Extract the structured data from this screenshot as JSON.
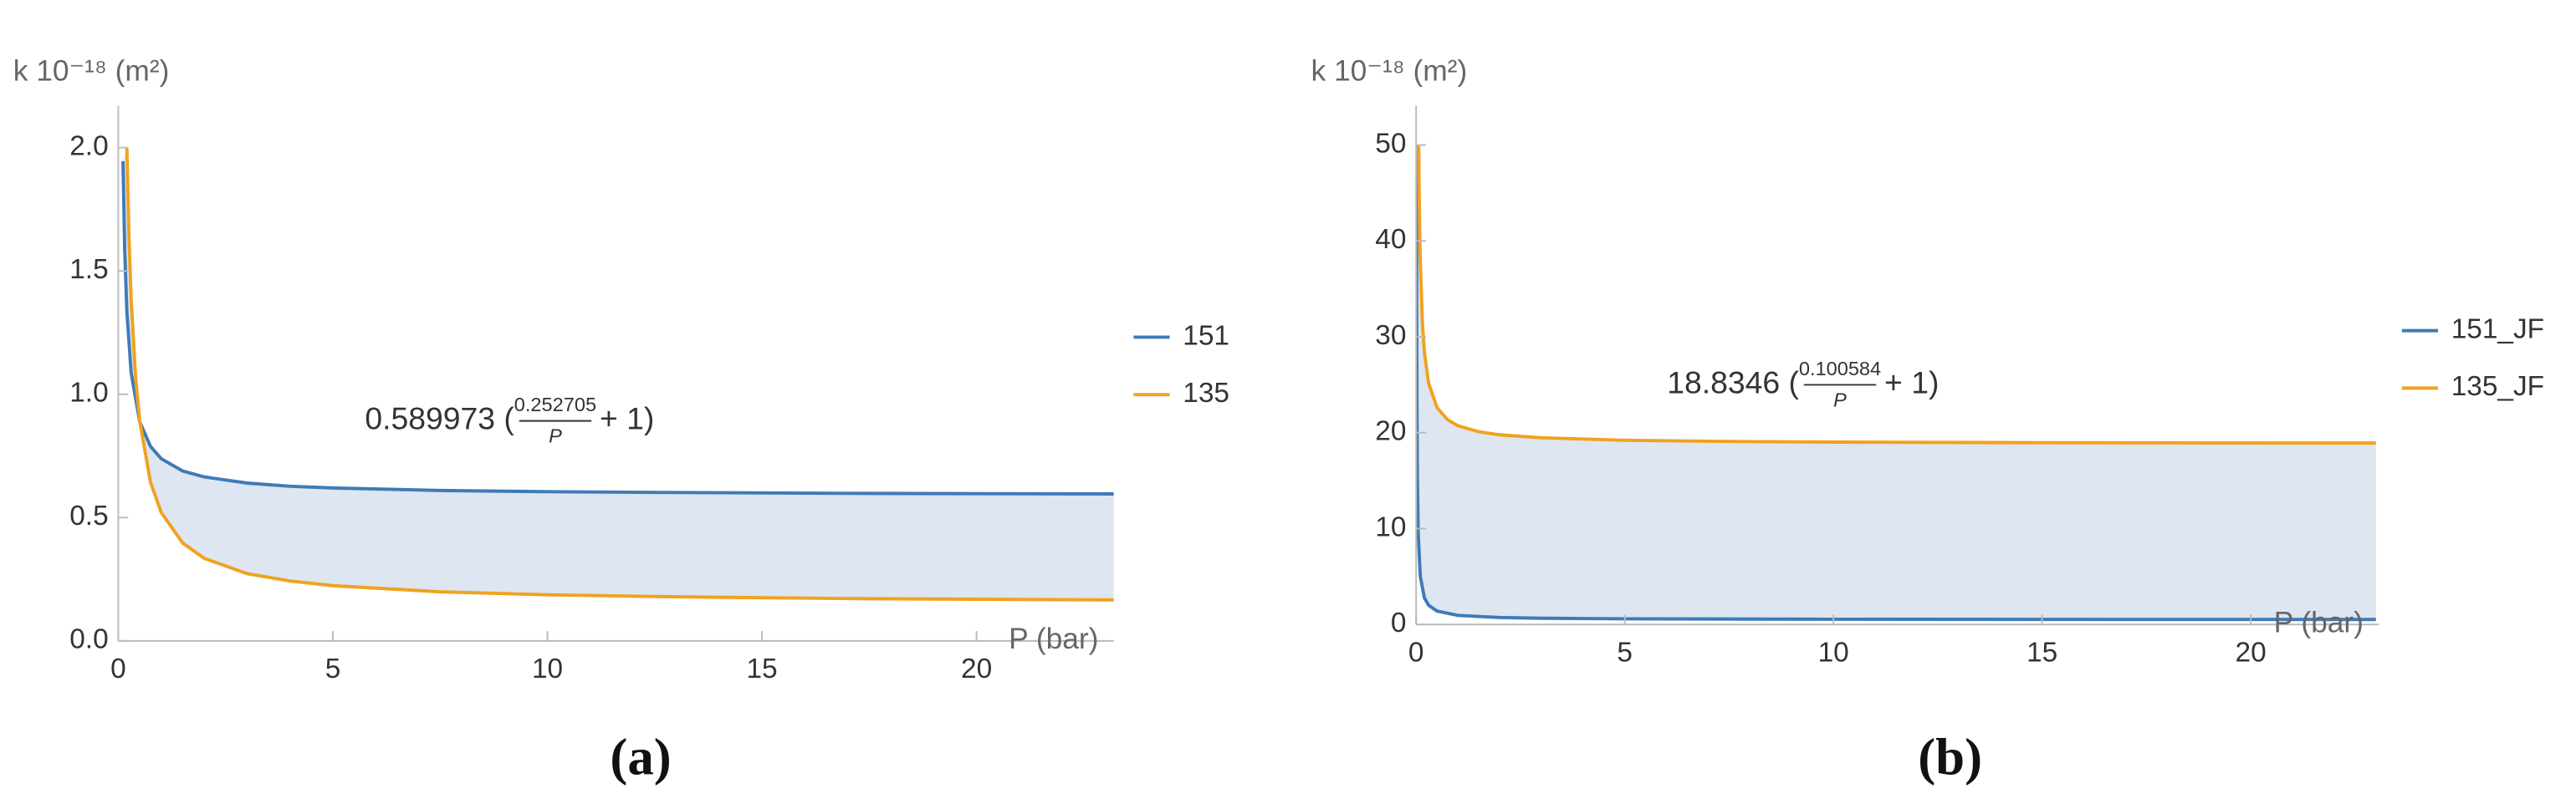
{
  "chart_data": [
    {
      "type": "line",
      "panel_label": "(a)",
      "y_label": "k 10⁻¹⁸ (m²)",
      "x_label": "P (bar)",
      "xlim": [
        0,
        23.2
      ],
      "ylim": [
        0,
        2.17
      ],
      "xticks": [
        0,
        5,
        10,
        15,
        20
      ],
      "yticks": [
        {
          "value": 0,
          "label": "0.0"
        },
        0.5,
        {
          "value": 1,
          "label": "1.0"
        },
        1.5,
        {
          "value": 2,
          "label": "2.0"
        }
      ],
      "fill_between": true,
      "fill_color": "#dde6f1",
      "legend": "right",
      "annotation": {
        "prefix": "0.589973 (",
        "numerator": "0.252705",
        "denominator": "P",
        "suffix": "+ 1)"
      },
      "series": [
        {
          "name": "151",
          "color": "#3f7bb6",
          "x": [
            0.11,
            0.15,
            0.2,
            0.3,
            0.5,
            0.75,
            1,
            1.5,
            2,
            3,
            4,
            5,
            7.5,
            10,
            12.5,
            15,
            17.5,
            20,
            23.2
          ],
          "values": [
            1.945,
            1.584,
            1.335,
            1.087,
            0.888,
            0.789,
            0.739,
            0.689,
            0.665,
            0.64,
            0.627,
            0.62,
            0.61,
            0.605,
            0.602,
            0.6,
            0.598,
            0.597,
            0.596
          ]
        },
        {
          "name": "135",
          "color": "#f0a21f",
          "x": [
            0.2,
            0.25,
            0.3,
            0.4,
            0.5,
            0.75,
            1,
            1.5,
            2,
            3,
            4,
            5,
            7.5,
            10,
            12.5,
            15,
            17.5,
            20,
            23.2
          ],
          "values": [
            2.0,
            1.632,
            1.385,
            1.076,
            0.891,
            0.644,
            0.521,
            0.397,
            0.335,
            0.273,
            0.243,
            0.224,
            0.199,
            0.187,
            0.18,
            0.175,
            0.171,
            0.169,
            0.166
          ]
        }
      ]
    },
    {
      "type": "line",
      "panel_label": "(b)",
      "y_label": "k 10⁻¹⁸ (m²)",
      "x_label": "P (bar)",
      "xlim": [
        0,
        23.07
      ],
      "ylim": [
        0,
        54.1
      ],
      "xticks": [
        0,
        5,
        10,
        15,
        20
      ],
      "yticks": [
        0,
        10,
        20,
        30,
        40,
        50
      ],
      "fill_between": true,
      "fill_color": "#dde6f1",
      "legend": "right",
      "annotation": {
        "prefix": "18.8346 (",
        "numerator": "0.100584",
        "denominator": "P",
        "suffix": "+ 1)"
      },
      "series": [
        {
          "name": "151_JF",
          "color": "#3f7bb6",
          "x": [
            0.0091,
            0.012,
            0.015,
            0.02,
            0.03,
            0.05,
            0.1,
            0.2,
            0.3,
            0.5,
            1,
            2,
            3,
            5,
            10,
            15,
            20,
            23
          ],
          "values": [
            49.95,
            38,
            30.5,
            23,
            15.5,
            9.5,
            5,
            2.75,
            2,
            1.4,
            0.95,
            0.725,
            0.65,
            0.59,
            0.545,
            0.53,
            0.5225,
            0.5196
          ]
        },
        {
          "name": "135_JF",
          "color": "#f0a21f",
          "x": [
            0.061,
            0.07,
            0.08,
            0.1,
            0.15,
            0.2,
            0.3,
            0.5,
            0.75,
            1,
            1.5,
            2,
            3,
            5,
            7.5,
            10,
            15,
            20,
            23
          ],
          "values": [
            49.89,
            45.9,
            42.52,
            37.78,
            31.47,
            28.31,
            25.15,
            22.62,
            21.36,
            20.73,
            20.1,
            19.78,
            19.47,
            19.21,
            19.09,
            19.02,
            18.96,
            18.93,
            18.92
          ]
        }
      ]
    }
  ]
}
